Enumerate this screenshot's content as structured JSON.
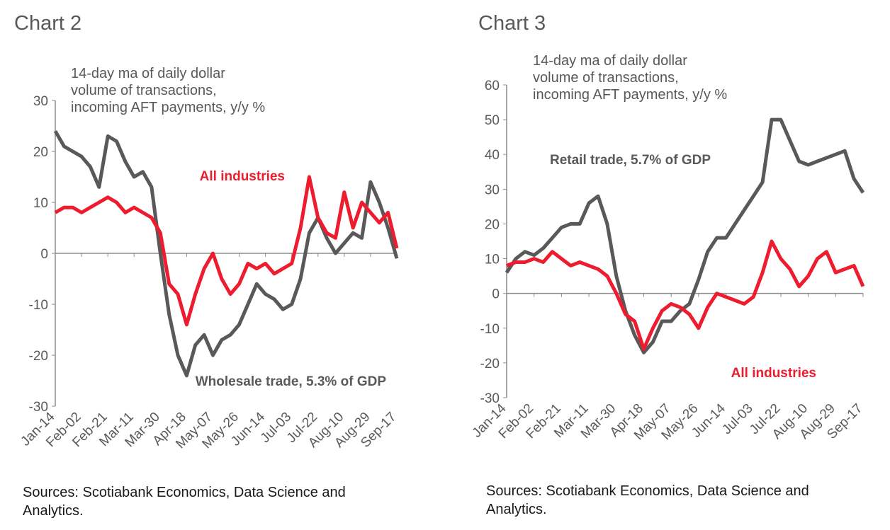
{
  "chart_data": [
    {
      "type": "line",
      "title": "Chart 2",
      "annotation": [
        "14-day ma of daily dollar",
        "volume of transactions,",
        "incoming AFT payments, y/y %"
      ],
      "source": "Sources: Scotiabank Economics, Data Science and Analytics.",
      "categories": [
        "Jan-14",
        null,
        null,
        "Feb-02",
        null,
        null,
        "Feb-21",
        null,
        null,
        "Mar-11",
        null,
        null,
        "Mar-30",
        null,
        null,
        "Apr-18",
        null,
        null,
        "May-07",
        null,
        null,
        "May-26",
        null,
        null,
        "Jun-14",
        null,
        null,
        "Jul-03",
        null,
        null,
        "Jul-22",
        null,
        null,
        "Aug-10",
        null,
        null,
        "Aug-29",
        null,
        null,
        "Sep-17"
      ],
      "ylim": [
        -30,
        30
      ],
      "yticks": [
        -30,
        -20,
        -10,
        0,
        10,
        20,
        30
      ],
      "series": [
        {
          "name": "Wholesale trade, 5.3% of GDP",
          "color": "#595959",
          "values": [
            24,
            21,
            20,
            19,
            17,
            13,
            23,
            22,
            18,
            15,
            16,
            13,
            0,
            -12,
            -20,
            -24,
            -18,
            -16,
            -20,
            -17,
            -16,
            -14,
            -10,
            -6,
            -8,
            -9,
            -11,
            -10,
            -5,
            4,
            7,
            3,
            0,
            2,
            4,
            3,
            14,
            10,
            5,
            -1
          ]
        },
        {
          "name": "All industries",
          "color": "#ed1c2e",
          "values": [
            8,
            9,
            9,
            8,
            9,
            10,
            11,
            10,
            8,
            9,
            8,
            7,
            4,
            -6,
            -8,
            -14,
            -8,
            -3,
            0,
            -5,
            -8,
            -6,
            -2,
            -3,
            -2,
            -4,
            -3,
            -2,
            5,
            15,
            7,
            4,
            3,
            12,
            5,
            10,
            8,
            6,
            8,
            1
          ]
        }
      ]
    },
    {
      "type": "line",
      "title": "Chart 3",
      "annotation": [
        "14-day ma of daily dollar",
        "volume of transactions,",
        "incoming AFT payments, y/y %"
      ],
      "source": "Sources: Scotiabank Economics, Data Science and Analytics.",
      "categories": [
        "Jan-14",
        null,
        null,
        "Feb-02",
        null,
        null,
        "Feb-21",
        null,
        null,
        "Mar-11",
        null,
        null,
        "Mar-30",
        null,
        null,
        "Apr-18",
        null,
        null,
        "May-07",
        null,
        null,
        "May-26",
        null,
        null,
        "Jun-14",
        null,
        null,
        "Jul-03",
        null,
        null,
        "Jul-22",
        null,
        null,
        "Aug-10",
        null,
        null,
        "Aug-29",
        null,
        null,
        "Sep-17"
      ],
      "ylim": [
        -30,
        60
      ],
      "yticks": [
        -30,
        -20,
        -10,
        0,
        10,
        20,
        30,
        40,
        50,
        60
      ],
      "series": [
        {
          "name": "Retail trade, 5.7% of GDP",
          "color": "#595959",
          "values": [
            6,
            10,
            12,
            11,
            13,
            16,
            19,
            20,
            20,
            26,
            28,
            20,
            5,
            -5,
            -12,
            -17,
            -14,
            -8,
            -8,
            -5,
            -3,
            4,
            12,
            16,
            16,
            20,
            24,
            28,
            32,
            50,
            50,
            44,
            38,
            37,
            38,
            39,
            40,
            41,
            33,
            29
          ]
        },
        {
          "name": "All industries",
          "color": "#ed1c2e",
          "values": [
            8,
            9,
            9,
            10,
            9,
            12,
            10,
            8,
            9,
            8,
            7,
            5,
            0,
            -6,
            -8,
            -16,
            -10,
            -5,
            -3,
            -4,
            -6,
            -10,
            -4,
            0,
            -1,
            -2,
            -3,
            -1,
            6,
            15,
            10,
            7,
            2,
            5,
            10,
            12,
            6,
            7,
            8,
            2
          ]
        }
      ]
    }
  ]
}
